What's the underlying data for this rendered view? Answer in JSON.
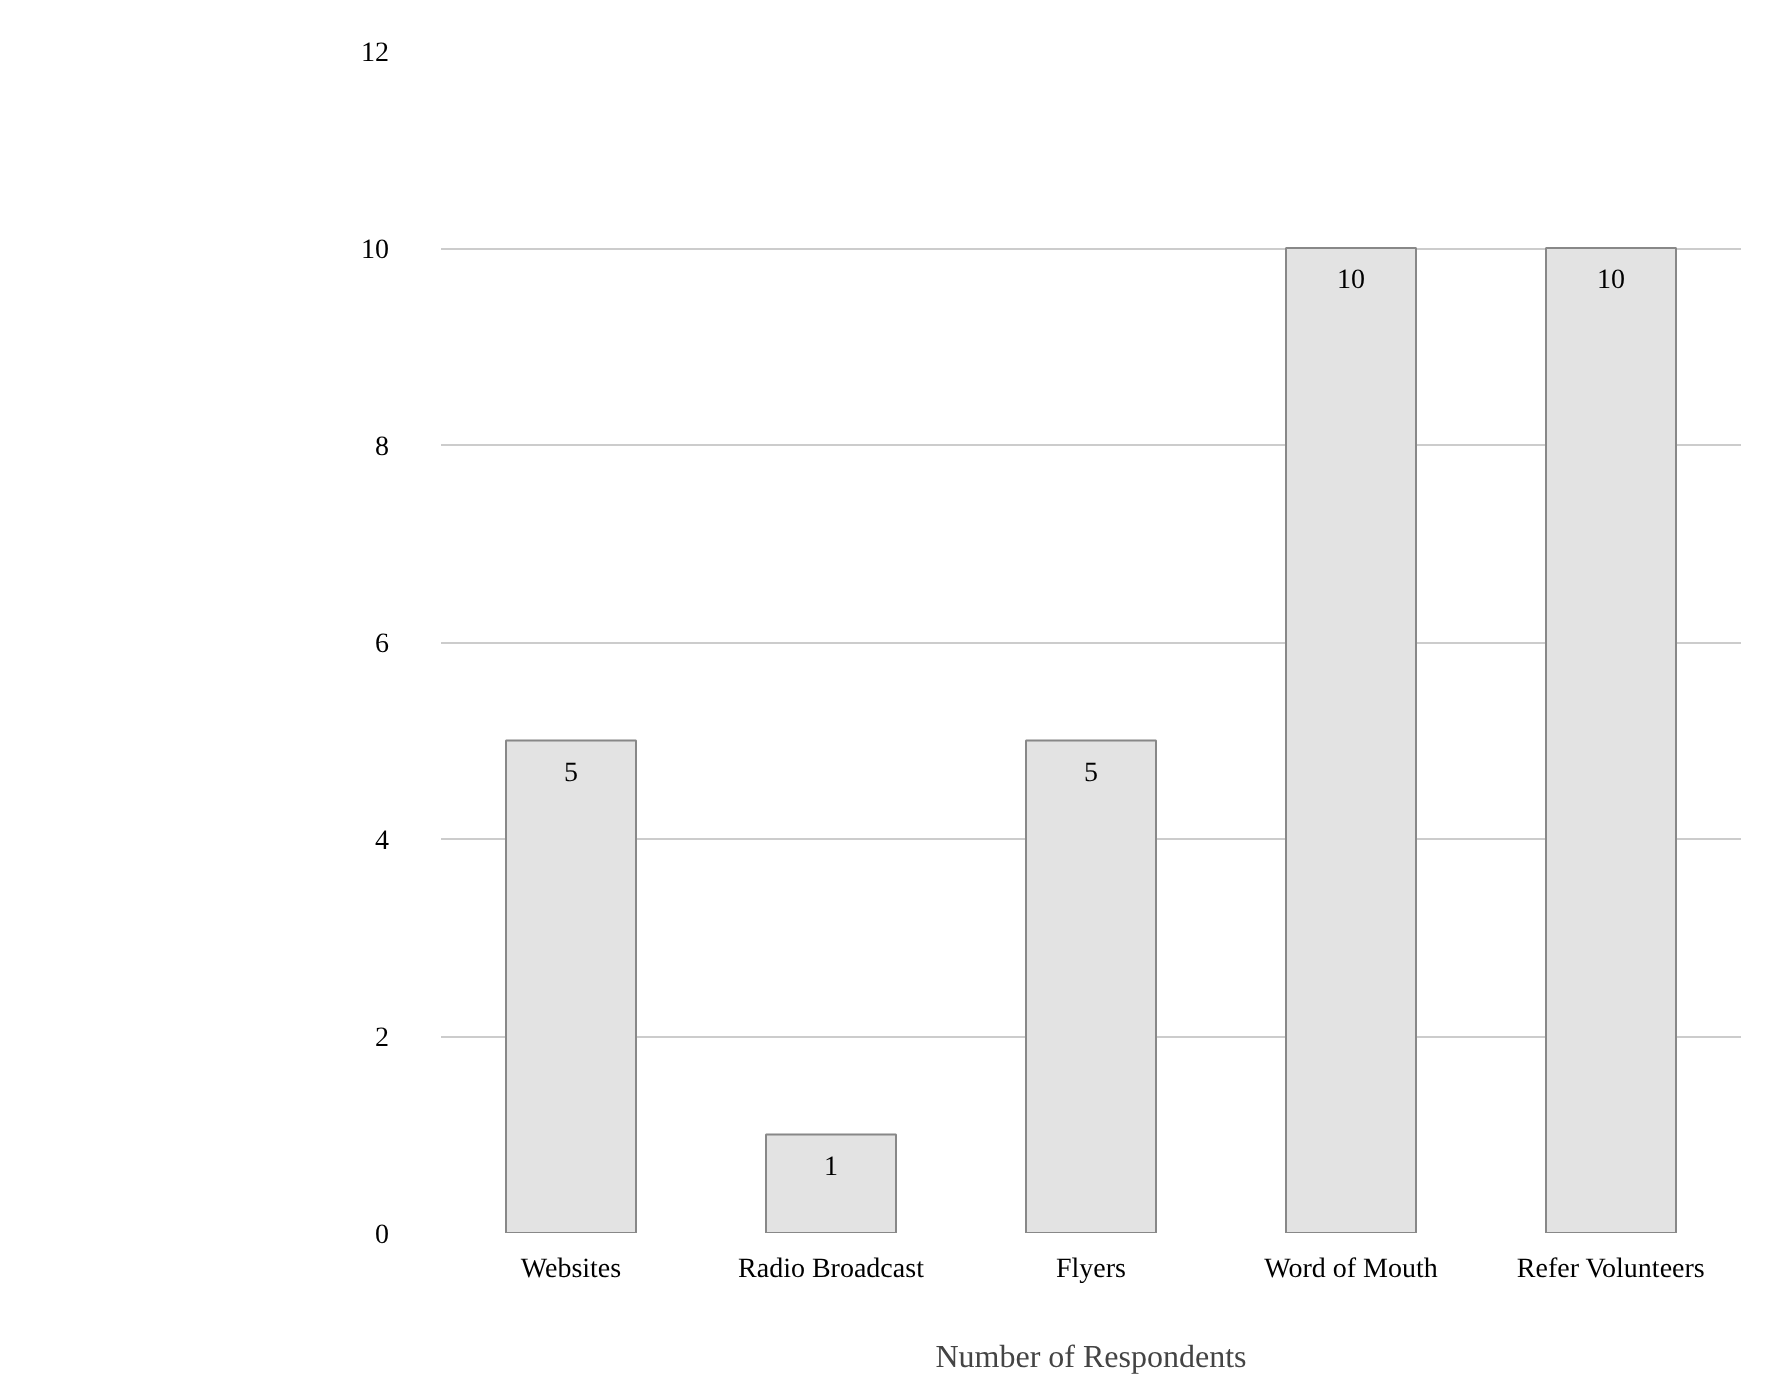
{
  "chart_data": {
    "type": "bar",
    "xlabel": "Number of Respondents",
    "categories": [
      "Websites",
      "Radio Broadcast",
      "Flyers",
      "Word of Mouth",
      "Refer Volunteers"
    ],
    "values": [
      5,
      1,
      5,
      10,
      10
    ],
    "color": "#e3e3e3",
    "ylim": [
      0,
      12
    ],
    "yticks": [
      0,
      2,
      4,
      6,
      8,
      10,
      12
    ],
    "grid": "y",
    "data_labels": true
  }
}
